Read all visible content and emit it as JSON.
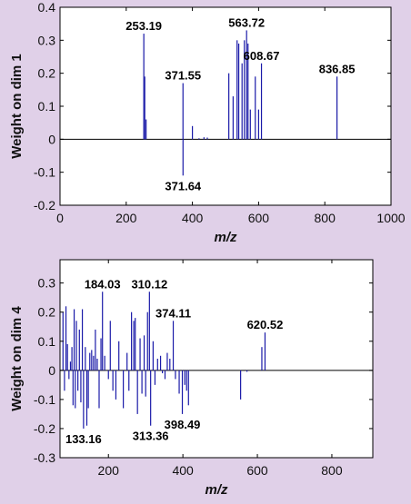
{
  "colors": {
    "background": "#e0d0e8",
    "plot": "#ffffff",
    "stem": "#1a1aa8",
    "axis": "#000000"
  },
  "chart_data": [
    {
      "type": "bar",
      "subtype": "stem",
      "xlabel": "m/z",
      "ylabel": "Weight on dim 1",
      "xlim": [
        0,
        1000
      ],
      "ylim": [
        -0.2,
        0.4
      ],
      "xticks": [
        0,
        200,
        400,
        600,
        800,
        1000
      ],
      "yticks": [
        -0.2,
        -0.1,
        0,
        0.1,
        0.2,
        0.3,
        0.4
      ],
      "ytick_labels": [
        "-0.2",
        "-0.1",
        "0",
        "0.1",
        "0.2",
        "0.3",
        "0.4"
      ],
      "grid": false,
      "points": [
        {
          "x": 253.19,
          "y": 0.32
        },
        {
          "x": 256,
          "y": 0.19
        },
        {
          "x": 260,
          "y": 0.06
        },
        {
          "x": 371.64,
          "y": -0.11
        },
        {
          "x": 371.55,
          "y": 0.17
        },
        {
          "x": 400,
          "y": 0.04
        },
        {
          "x": 420,
          "y": 0.003
        },
        {
          "x": 435,
          "y": 0.006
        },
        {
          "x": 445,
          "y": 0.005
        },
        {
          "x": 510,
          "y": 0.2
        },
        {
          "x": 523,
          "y": 0.13
        },
        {
          "x": 535,
          "y": 0.3
        },
        {
          "x": 540,
          "y": 0.29
        },
        {
          "x": 550,
          "y": 0.23
        },
        {
          "x": 557,
          "y": 0.3
        },
        {
          "x": 563.72,
          "y": 0.33
        },
        {
          "x": 568,
          "y": 0.29
        },
        {
          "x": 575,
          "y": 0.09
        },
        {
          "x": 590,
          "y": 0.19
        },
        {
          "x": 600,
          "y": 0.09
        },
        {
          "x": 608.67,
          "y": 0.23
        },
        {
          "x": 836.85,
          "y": 0.19
        }
      ],
      "annotations": [
        {
          "x": 253.19,
          "y": 0.32,
          "label": "253.19",
          "pos": "above"
        },
        {
          "x": 371.55,
          "y": 0.17,
          "label": "371.55",
          "pos": "above"
        },
        {
          "x": 371.64,
          "y": -0.11,
          "label": "371.64",
          "pos": "below"
        },
        {
          "x": 563.72,
          "y": 0.33,
          "label": "563.72",
          "pos": "above"
        },
        {
          "x": 608.67,
          "y": 0.23,
          "label": "608.67",
          "pos": "above"
        },
        {
          "x": 836.85,
          "y": 0.19,
          "label": "836.85",
          "pos": "above"
        }
      ]
    },
    {
      "type": "bar",
      "subtype": "stem",
      "xlabel": "m/z",
      "ylabel": "Weight on dim 4",
      "xlim": [
        70,
        910
      ],
      "ylim": [
        -0.3,
        0.38
      ],
      "xticks": [
        200,
        400,
        600,
        800
      ],
      "yticks": [
        -0.3,
        -0.2,
        -0.1,
        0,
        0.1,
        0.2,
        0.3
      ],
      "ytick_labels": [
        "-0.3",
        "-0.2",
        "-0.1",
        "0",
        "0.1",
        "0.2",
        "0.3"
      ],
      "grid": false,
      "points": [
        {
          "x": 78,
          "y": 0.2
        },
        {
          "x": 82,
          "y": -0.07
        },
        {
          "x": 86,
          "y": 0.22
        },
        {
          "x": 90,
          "y": 0.09
        },
        {
          "x": 94,
          "y": -0.03
        },
        {
          "x": 98,
          "y": 0.03
        },
        {
          "x": 102,
          "y": 0.08
        },
        {
          "x": 105,
          "y": -0.12
        },
        {
          "x": 108,
          "y": 0.21
        },
        {
          "x": 111,
          "y": -0.13
        },
        {
          "x": 114,
          "y": 0.17
        },
        {
          "x": 118,
          "y": -0.07
        },
        {
          "x": 122,
          "y": 0.14
        },
        {
          "x": 126,
          "y": -0.11
        },
        {
          "x": 130,
          "y": 0.21
        },
        {
          "x": 133.16,
          "y": -0.2
        },
        {
          "x": 138,
          "y": 0.08
        },
        {
          "x": 142,
          "y": -0.19
        },
        {
          "x": 146,
          "y": -0.13
        },
        {
          "x": 150,
          "y": 0.06
        },
        {
          "x": 155,
          "y": 0.07
        },
        {
          "x": 160,
          "y": 0.05
        },
        {
          "x": 165,
          "y": 0.14
        },
        {
          "x": 170,
          "y": 0.04
        },
        {
          "x": 175,
          "y": -0.13
        },
        {
          "x": 180,
          "y": 0.11
        },
        {
          "x": 184.03,
          "y": 0.27
        },
        {
          "x": 190,
          "y": 0.05
        },
        {
          "x": 200,
          "y": -0.03
        },
        {
          "x": 205,
          "y": 0.17
        },
        {
          "x": 212,
          "y": -0.07
        },
        {
          "x": 220,
          "y": -0.1
        },
        {
          "x": 228,
          "y": 0.1
        },
        {
          "x": 240,
          "y": -0.13
        },
        {
          "x": 250,
          "y": 0.06
        },
        {
          "x": 255,
          "y": -0.07
        },
        {
          "x": 262,
          "y": 0.2
        },
        {
          "x": 268,
          "y": 0.17
        },
        {
          "x": 272,
          "y": 0.18
        },
        {
          "x": 278,
          "y": -0.15
        },
        {
          "x": 285,
          "y": 0.11
        },
        {
          "x": 290,
          "y": -0.08
        },
        {
          "x": 296,
          "y": 0.12
        },
        {
          "x": 300,
          "y": -0.09
        },
        {
          "x": 305,
          "y": 0.2
        },
        {
          "x": 310.12,
          "y": 0.27
        },
        {
          "x": 313.36,
          "y": -0.19
        },
        {
          "x": 320,
          "y": 0.1
        },
        {
          "x": 325,
          "y": -0.05
        },
        {
          "x": 332,
          "y": 0.04
        },
        {
          "x": 340,
          "y": 0.05
        },
        {
          "x": 345,
          "y": -0.01
        },
        {
          "x": 352,
          "y": -0.03
        },
        {
          "x": 358,
          "y": 0.06
        },
        {
          "x": 365,
          "y": 0.04
        },
        {
          "x": 374.11,
          "y": 0.17
        },
        {
          "x": 380,
          "y": -0.03
        },
        {
          "x": 390,
          "y": -0.08
        },
        {
          "x": 398.49,
          "y": -0.15
        },
        {
          "x": 405,
          "y": -0.05
        },
        {
          "x": 410,
          "y": -0.07
        },
        {
          "x": 415,
          "y": -0.12
        },
        {
          "x": 555,
          "y": -0.1
        },
        {
          "x": 572,
          "y": -0.005
        },
        {
          "x": 612,
          "y": 0.08
        },
        {
          "x": 620.52,
          "y": 0.13
        }
      ],
      "annotations": [
        {
          "x": 184.03,
          "y": 0.27,
          "label": "184.03",
          "pos": "above"
        },
        {
          "x": 310.12,
          "y": 0.27,
          "label": "310.12",
          "pos": "above"
        },
        {
          "x": 374.11,
          "y": 0.17,
          "label": "374.11",
          "pos": "above"
        },
        {
          "x": 620.52,
          "y": 0.13,
          "label": "620.52",
          "pos": "above"
        },
        {
          "x": 133.16,
          "y": -0.2,
          "label": "133.16",
          "pos": "below"
        },
        {
          "x": 313.36,
          "y": -0.19,
          "label": "313.36",
          "pos": "below"
        },
        {
          "x": 398.49,
          "y": -0.15,
          "label": "398.49",
          "pos": "below"
        }
      ]
    }
  ]
}
